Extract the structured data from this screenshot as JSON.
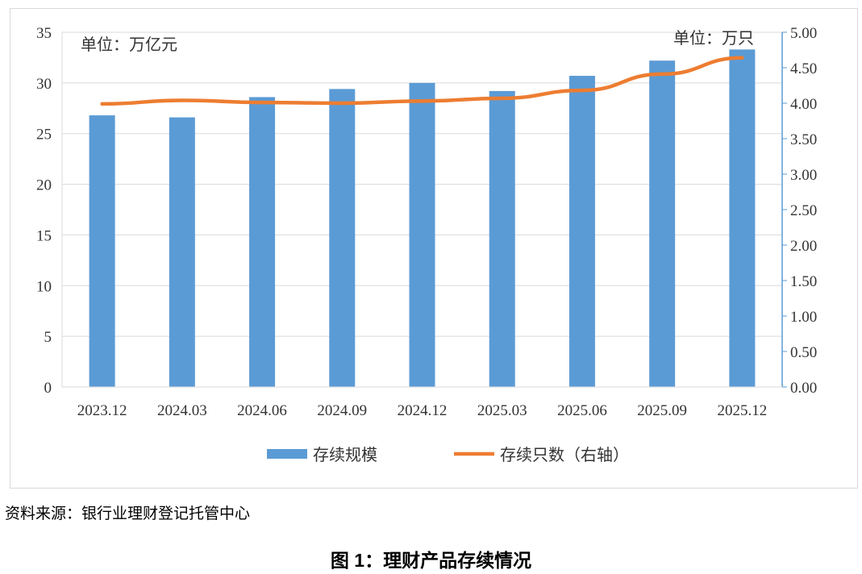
{
  "chart_data": {
    "type": "bar+line",
    "categories": [
      "2023.12",
      "2024.03",
      "2024.06",
      "2024.09",
      "2024.12",
      "2025.03",
      "2025.06",
      "2025.09",
      "2025.12"
    ],
    "series": [
      {
        "name": "存续规模",
        "type": "bar",
        "axis": "left",
        "color": "#5b9bd5",
        "values": [
          26.8,
          26.6,
          28.6,
          29.4,
          30.0,
          29.2,
          30.7,
          32.2,
          33.3
        ]
      },
      {
        "name": "存续只数（右轴）",
        "type": "line",
        "axis": "right",
        "color": "#ed7d31",
        "values": [
          3.99,
          4.04,
          4.01,
          4.0,
          4.03,
          4.07,
          4.18,
          4.41,
          4.64
        ]
      }
    ],
    "left_axis": {
      "unit_label": "单位：万亿元",
      "ylim": [
        0,
        35
      ],
      "ticks": [
        "0",
        "5",
        "10",
        "15",
        "20",
        "25",
        "30",
        "35"
      ]
    },
    "right_axis": {
      "unit_label": "单位：万只",
      "ylim": [
        0,
        5
      ],
      "ticks": [
        "0.00",
        "0.50",
        "1.00",
        "1.50",
        "2.00",
        "2.50",
        "3.00",
        "3.50",
        "4.00",
        "4.50",
        "5.00"
      ],
      "color": "#5b9bd5"
    },
    "grid": true,
    "legend_position": "bottom"
  },
  "source": "资料来源：银行业理财登记托管中心",
  "caption": "图 1：理财产品存续情况"
}
